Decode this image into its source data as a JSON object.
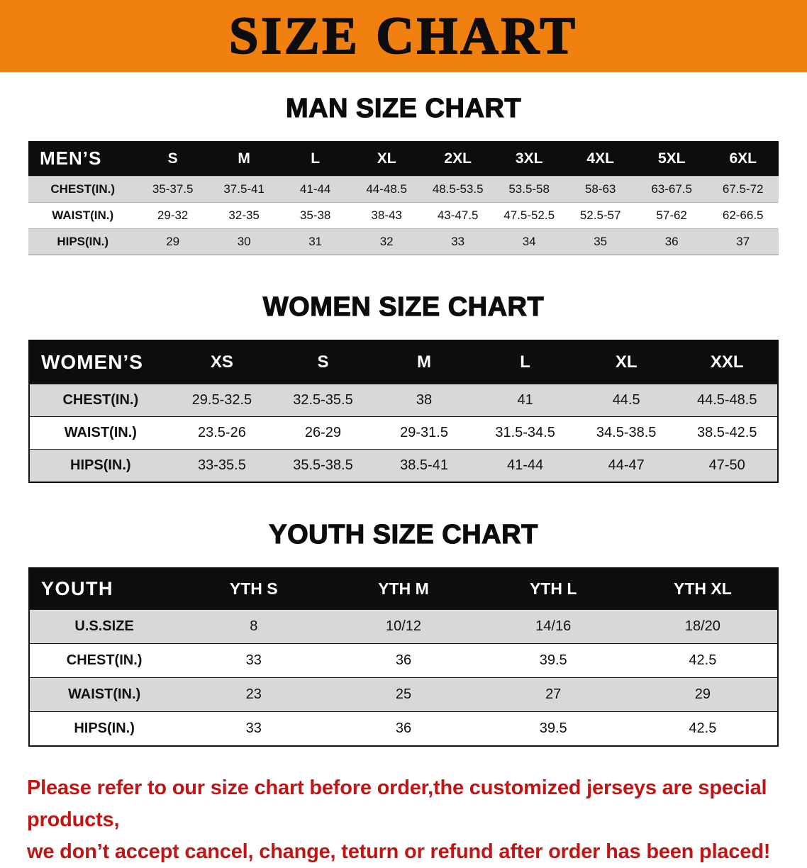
{
  "banner": {
    "title": "SIZE CHART"
  },
  "colors": {
    "banner_bg": "#f0800f",
    "header_bg": "#0d0d0d",
    "stripe": "#d8d8d8",
    "note_red": "#c31414"
  },
  "tables": [
    {
      "id": "men",
      "heading": "MAN SIZE CHART",
      "corner": "MEN’S",
      "columns": [
        "S",
        "M",
        "L",
        "XL",
        "2XL",
        "3XL",
        "4XL",
        "5XL",
        "6XL"
      ],
      "rows": [
        {
          "label": "CHEST(IN.)",
          "values": [
            "35-37.5",
            "37.5-41",
            "41-44",
            "44-48.5",
            "48.5-53.5",
            "53.5-58",
            "58-63",
            "63-67.5",
            "67.5-72"
          ]
        },
        {
          "label": "WAIST(IN.)",
          "values": [
            "29-32",
            "32-35",
            "35-38",
            "38-43",
            "43-47.5",
            "47.5-52.5",
            "52.5-57",
            "57-62",
            "62-66.5"
          ]
        },
        {
          "label": "HIPS(IN.)",
          "values": [
            "29",
            "30",
            "31",
            "32",
            "33",
            "34",
            "35",
            "36",
            "37"
          ]
        }
      ]
    },
    {
      "id": "women",
      "heading": "WOMEN SIZE CHART",
      "corner": "WOMEN’S",
      "columns": [
        "XS",
        "S",
        "M",
        "L",
        "XL",
        "XXL"
      ],
      "rows": [
        {
          "label": "CHEST(IN.)",
          "values": [
            "29.5-32.5",
            "32.5-35.5",
            "38",
            "41",
            "44.5",
            "44.5-48.5"
          ]
        },
        {
          "label": "WAIST(IN.)",
          "values": [
            "23.5-26",
            "26-29",
            "29-31.5",
            "31.5-34.5",
            "34.5-38.5",
            "38.5-42.5"
          ]
        },
        {
          "label": "HIPS(IN.)",
          "values": [
            "33-35.5",
            "35.5-38.5",
            "38.5-41",
            "41-44",
            "44-47",
            "47-50"
          ]
        }
      ]
    },
    {
      "id": "youth",
      "heading": "YOUTH SIZE CHART",
      "corner": "YOUTH",
      "columns": [
        "YTH S",
        "YTH M",
        "YTH L",
        "YTH XL"
      ],
      "rows": [
        {
          "label": "U.S.SIZE",
          "values": [
            "8",
            "10/12",
            "14/16",
            "18/20"
          ]
        },
        {
          "label": "CHEST(IN.)",
          "values": [
            "33",
            "36",
            "39.5",
            "42.5"
          ]
        },
        {
          "label": "WAIST(IN.)",
          "values": [
            "23",
            "25",
            "27",
            "29"
          ]
        },
        {
          "label": "HIPS(IN.)",
          "values": [
            "33",
            "36",
            "39.5",
            "42.5"
          ]
        }
      ]
    }
  ],
  "note": {
    "line1": "Please refer to our size chart before order,the customized jerseys are special products,",
    "line2": "we don’t accept cancel, change, teturn or refund after order has been placed!"
  }
}
